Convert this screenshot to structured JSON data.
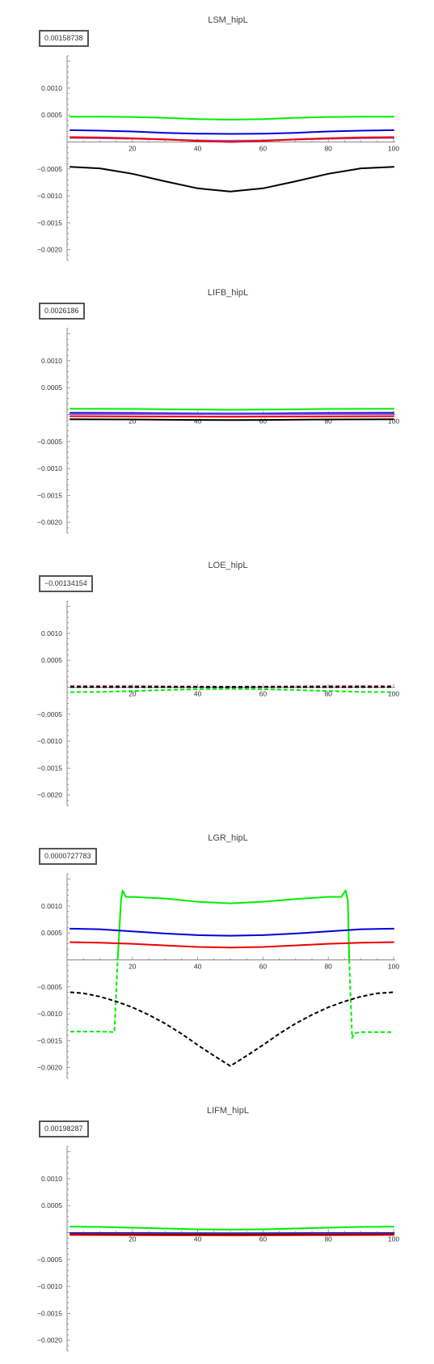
{
  "chart_data": [
    {
      "type": "line",
      "title": "LSM_hipL",
      "value_box": "0.00158738",
      "xlim": [
        0,
        100
      ],
      "ylim": [
        -0.0022,
        0.0016
      ],
      "x_ticks": [
        20,
        40,
        60,
        80,
        100
      ],
      "x_tick_labels": [
        "20",
        "40",
        "60",
        "80",
        "100"
      ],
      "y_ticks": [
        0.001,
        0.0005,
        -0.0005,
        -0.001,
        -0.0015,
        -0.002
      ],
      "y_tick_labels": [
        "0.0010",
        "0.0005",
        "−0.0005",
        "−0.0010",
        "−0.0015",
        "−0.0020"
      ],
      "series": [
        {
          "color": "#00ee00",
          "dash": false,
          "x": [
            1,
            10,
            20,
            30,
            40,
            50,
            60,
            70,
            80,
            90,
            100
          ],
          "y": [
            0.00047,
            0.00047,
            0.000465,
            0.00045,
            0.000425,
            0.000415,
            0.000425,
            0.00045,
            0.000465,
            0.00047,
            0.00047
          ]
        },
        {
          "color": "#0000dd",
          "dash": false,
          "x": [
            1,
            10,
            20,
            30,
            40,
            50,
            60,
            70,
            80,
            90,
            100
          ],
          "y": [
            0.00022,
            0.00021,
            0.000195,
            0.00017,
            0.000155,
            0.00015,
            0.000155,
            0.00017,
            0.000195,
            0.00021,
            0.00022
          ]
        },
        {
          "color": "#9955dd",
          "dash": false,
          "x": [
            1,
            10,
            20,
            30,
            40,
            50,
            60,
            70,
            80,
            90,
            100
          ],
          "y": [
            7.5e-05,
            7e-05,
            6e-05,
            4.5e-05,
            3e-05,
            2.5e-05,
            3e-05,
            4.5e-05,
            6e-05,
            7e-05,
            7.5e-05
          ]
        },
        {
          "color": "#ee0000",
          "dash": false,
          "x": [
            1,
            10,
            20,
            30,
            40,
            50,
            60,
            70,
            80,
            90,
            100
          ],
          "y": [
            9e-05,
            8.5e-05,
            7e-05,
            5e-05,
            2e-05,
            0.0,
            2e-05,
            5e-05,
            7e-05,
            8.5e-05,
            9e-05
          ]
        },
        {
          "color": "#000000",
          "dash": false,
          "x": [
            1,
            10,
            20,
            30,
            40,
            50,
            60,
            70,
            80,
            90,
            100
          ],
          "y": [
            -0.00046,
            -0.00049,
            -0.00059,
            -0.00073,
            -0.00086,
            -0.00092,
            -0.00086,
            -0.00073,
            -0.00059,
            -0.00049,
            -0.00046
          ]
        }
      ]
    },
    {
      "type": "line",
      "title": "LIFB_hipL",
      "value_box": "0.0026186",
      "xlim": [
        0,
        100
      ],
      "ylim": [
        -0.0022,
        0.0016
      ],
      "x_ticks": [
        20,
        40,
        60,
        80,
        100
      ],
      "x_tick_labels": [
        "20",
        "40",
        "60",
        "80",
        "100"
      ],
      "y_ticks": [
        0.001,
        0.0005,
        -0.0005,
        -0.001,
        -0.0015,
        -0.002
      ],
      "y_tick_labels": [
        "0.0010",
        "0.0005",
        "−0.0005",
        "−0.0010",
        "−0.0015",
        "−0.0020"
      ],
      "series": [
        {
          "color": "#00ee00",
          "dash": false,
          "x": [
            1,
            20,
            40,
            50,
            60,
            80,
            100
          ],
          "y": [
            0.00011,
            0.000105,
            9.5e-05,
            9e-05,
            9.5e-05,
            0.000105,
            0.00011
          ]
        },
        {
          "color": "#0000dd",
          "dash": false,
          "x": [
            1,
            20,
            40,
            50,
            60,
            80,
            100
          ],
          "y": [
            3.5e-05,
            3e-05,
            2.2e-05,
            2e-05,
            2.2e-05,
            3e-05,
            3.5e-05
          ]
        },
        {
          "color": "#9955dd",
          "dash": false,
          "x": [
            1,
            20,
            40,
            50,
            60,
            80,
            100
          ],
          "y": [
            1.2e-05,
            1e-05,
            6e-06,
            5e-06,
            6e-06,
            1e-05,
            1.2e-05
          ]
        },
        {
          "color": "#ee0000",
          "dash": false,
          "x": [
            1,
            20,
            40,
            50,
            60,
            80,
            100
          ],
          "y": [
            -3e-05,
            -3.2e-05,
            -3.6e-05,
            -3.8e-05,
            -3.6e-05,
            -3.2e-05,
            -3e-05
          ]
        },
        {
          "color": "#000000",
          "dash": false,
          "x": [
            1,
            20,
            40,
            50,
            60,
            80,
            100
          ],
          "y": [
            -8.5e-05,
            -9e-05,
            -9.8e-05,
            -0.0001,
            -9.8e-05,
            -9e-05,
            -8.5e-05
          ]
        }
      ]
    },
    {
      "type": "line",
      "title": "LOE_hipL",
      "value_box": "−0.00134154",
      "xlim": [
        0,
        100
      ],
      "ylim": [
        -0.0022,
        0.0016
      ],
      "x_ticks": [
        20,
        40,
        60,
        80,
        100
      ],
      "x_tick_labels": [
        "20",
        "40",
        "60",
        "80",
        "100"
      ],
      "y_ticks": [
        0.001,
        0.0005,
        -0.0005,
        -0.001,
        -0.0015,
        -0.002
      ],
      "y_tick_labels": [
        "0.0010",
        "0.0005",
        "−0.0005",
        "−0.0010",
        "−0.0015",
        "−0.0020"
      ],
      "series": [
        {
          "color": "#ee0000",
          "dash": true,
          "x": [
            1,
            20,
            40,
            50,
            60,
            80,
            100
          ],
          "y": [
            2e-05,
            1.8e-05,
            1.2e-05,
            1e-05,
            1.2e-05,
            1.8e-05,
            2e-05
          ]
        },
        {
          "color": "#0000dd",
          "dash": true,
          "x": [
            1,
            20,
            40,
            50,
            60,
            80,
            100
          ],
          "y": [
            8e-06,
            6e-06,
            3e-06,
            2e-06,
            3e-06,
            6e-06,
            8e-06
          ]
        },
        {
          "color": "#000000",
          "dash": true,
          "x": [
            1,
            20,
            40,
            50,
            60,
            80,
            100
          ],
          "y": [
            4e-06,
            4e-06,
            6e-06,
            7e-06,
            6e-06,
            4e-06,
            4e-06
          ]
        },
        {
          "color": "#00ee00",
          "dash": true,
          "x": [
            1,
            10,
            20,
            30,
            40,
            50,
            60,
            70,
            80,
            90,
            100
          ],
          "y": [
            -9e-05,
            -8.5e-05,
            -7e-05,
            -5e-05,
            -3.5e-05,
            -3e-05,
            -3.5e-05,
            -5e-05,
            -7e-05,
            -8.5e-05,
            -9e-05
          ]
        }
      ]
    },
    {
      "type": "line",
      "title": "LGR_hipL",
      "value_box": "0.0000727783",
      "xlim": [
        0,
        100
      ],
      "ylim": [
        -0.0022,
        0.0016
      ],
      "x_ticks": [
        20,
        40,
        60,
        80,
        100
      ],
      "x_tick_labels": [
        "20",
        "40",
        "60",
        "80",
        "100"
      ],
      "y_ticks": [
        0.001,
        0.0005,
        -0.0005,
        -0.001,
        -0.0015,
        -0.002
      ],
      "y_tick_labels": [
        "0.0010",
        "0.0005",
        "−0.0005",
        "−0.0010",
        "−0.0015",
        "−0.0020"
      ],
      "series": [
        {
          "color": "#00ee00",
          "dash": false,
          "x": [
            15.5,
            16.5,
            17,
            18,
            20,
            30,
            40,
            50,
            60,
            70,
            80,
            84,
            85.3,
            86,
            86.4
          ],
          "y": [
            0.0,
            0.0011,
            0.00129,
            0.00117,
            0.00117,
            0.00114,
            0.00108,
            0.00105,
            0.00108,
            0.00113,
            0.00117,
            0.00117,
            0.00129,
            0.0011,
            0.0
          ]
        },
        {
          "color": "#00ee00",
          "dash": true,
          "x": [
            1,
            10,
            14.5,
            15.5
          ],
          "y": [
            -0.00133,
            -0.00133,
            -0.00134,
            0.0
          ]
        },
        {
          "color": "#00ee00",
          "dash": true,
          "x": [
            86.4,
            87.3,
            88,
            90,
            100
          ],
          "y": [
            0.0,
            -0.00145,
            -0.00136,
            -0.00134,
            -0.00134
          ]
        },
        {
          "color": "#0000dd",
          "dash": false,
          "x": [
            1,
            10,
            20,
            30,
            40,
            50,
            60,
            70,
            80,
            90,
            100
          ],
          "y": [
            0.00058,
            0.00057,
            0.00053,
            0.00049,
            0.00046,
            0.00045,
            0.00046,
            0.00049,
            0.00053,
            0.00057,
            0.00058
          ]
        },
        {
          "color": "#ee0000",
          "dash": false,
          "x": [
            1,
            10,
            20,
            30,
            40,
            50,
            60,
            70,
            80,
            90,
            100
          ],
          "y": [
            0.00033,
            0.00032,
            0.0003,
            0.00027,
            0.00024,
            0.00023,
            0.00024,
            0.00027,
            0.0003,
            0.00032,
            0.00033
          ]
        },
        {
          "color": "#000000",
          "dash": true,
          "x": [
            1,
            5,
            10,
            15,
            20,
            25,
            30,
            35,
            40,
            45,
            50,
            55,
            60,
            65,
            70,
            75,
            80,
            85,
            90,
            95,
            100
          ],
          "y": [
            -0.0006,
            -0.00062,
            -0.00068,
            -0.00077,
            -0.00088,
            -0.00102,
            -0.00118,
            -0.00137,
            -0.00158,
            -0.00178,
            -0.00197,
            -0.00178,
            -0.00158,
            -0.00137,
            -0.00118,
            -0.00102,
            -0.00088,
            -0.00077,
            -0.00068,
            -0.00062,
            -0.0006
          ]
        }
      ]
    },
    {
      "type": "line",
      "title": "LIFM_hipL",
      "value_box": "0.00198287",
      "xlim": [
        0,
        100
      ],
      "ylim": [
        -0.0022,
        0.0016
      ],
      "x_ticks": [
        20,
        40,
        60,
        80,
        100
      ],
      "x_tick_labels": [
        "20",
        "40",
        "60",
        "80",
        "100"
      ],
      "y_ticks": [
        0.001,
        0.0005,
        -0.0005,
        -0.001,
        -0.0015,
        -0.002
      ],
      "y_tick_labels": [
        "0.0010",
        "0.0005",
        "−0.0005",
        "−0.0010",
        "−0.0015",
        "−0.0020"
      ],
      "series": [
        {
          "color": "#00ee00",
          "dash": false,
          "x": [
            1,
            10,
            20,
            30,
            40,
            50,
            60,
            70,
            80,
            90,
            100
          ],
          "y": [
            0.00011,
            0.000105,
            9e-05,
            7.5e-05,
            6e-05,
            5.5e-05,
            6e-05,
            7.5e-05,
            9e-05,
            0.000105,
            0.00011
          ]
        },
        {
          "color": "#0000dd",
          "dash": false,
          "x": [
            1,
            20,
            40,
            50,
            60,
            80,
            100
          ],
          "y": [
            -1e-05,
            -1.2e-05,
            -1.6e-05,
            -1.8e-05,
            -1.6e-05,
            -1.2e-05,
            -1e-05
          ]
        },
        {
          "color": "#9955dd",
          "dash": false,
          "x": [
            1,
            20,
            40,
            50,
            60,
            80,
            100
          ],
          "y": [
            -2e-05,
            -2.2e-05,
            -2.6e-05,
            -2.8e-05,
            -2.6e-05,
            -2.2e-05,
            -2e-05
          ]
        },
        {
          "color": "#000000",
          "dash": false,
          "x": [
            1,
            20,
            40,
            50,
            60,
            80,
            100
          ],
          "y": [
            -3e-05,
            -3.2e-05,
            -3.6e-05,
            -3.8e-05,
            -3.6e-05,
            -3.2e-05,
            -3e-05
          ]
        },
        {
          "color": "#ee0000",
          "dash": false,
          "x": [
            1,
            20,
            40,
            50,
            60,
            80,
            100
          ],
          "y": [
            -4.5e-05,
            -4.8e-05,
            -5.2e-05,
            -5.4e-05,
            -5.2e-05,
            -4.8e-05,
            -4.5e-05
          ]
        }
      ]
    }
  ]
}
